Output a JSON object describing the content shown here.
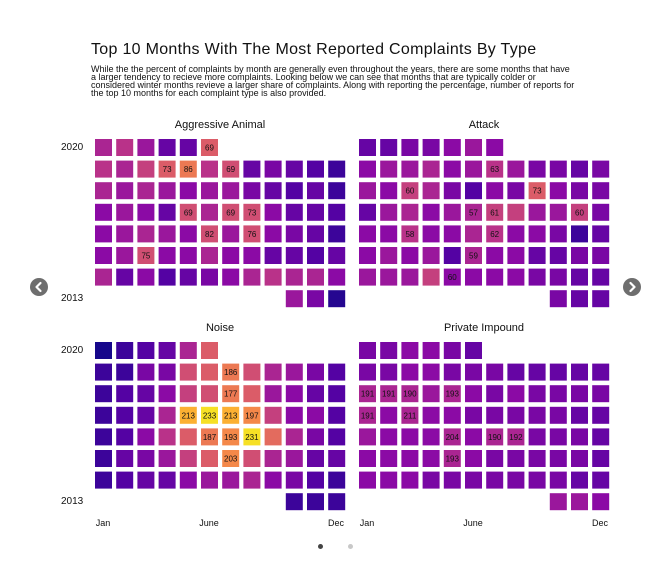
{
  "title": "Top 10 Months With The Most Reported Complaints By Type",
  "description": "While the the percent of complaints by month are generally even throughout the years, there are some months that have a larger tendency to recieve more complaints. Looking below we can see that months that are typically colder or considered winter months revieve a larger share of complaints. Along with reporting the percentage, number of reports for the top 10 months for each complaint type is also provided.",
  "year_top": "2020",
  "year_bottom": "2013",
  "month_labels": {
    "start": "Jan",
    "mid": "June",
    "end": "Dec"
  },
  "navigation": {
    "prev_icon": "chevron-left-icon",
    "next_icon": "chevron-right-icon",
    "pages": 2,
    "active_page": 1
  },
  "colors": {
    "colormap": "plasma",
    "arrow": "#6e6e6e",
    "dot_active": "#444444",
    "dot_inactive": "#c8c8c8"
  },
  "chart_data": [
    {
      "type": "heatmap",
      "title": "Aggressive Animal",
      "x": "month (Jan–Dec)",
      "y": "year (2020 top, 2013 bottom)",
      "rows": [
        {
          "year": 2020,
          "values": [
            0.4,
            0.45,
            0.35,
            0.2,
            0.2,
            0.6,
            null,
            null,
            null,
            null,
            null,
            null
          ],
          "labels": [
            null,
            null,
            null,
            null,
            null,
            "69",
            null,
            null,
            null,
            null,
            null,
            null
          ]
        },
        {
          "year": 2019,
          "values": [
            0.45,
            0.4,
            0.5,
            0.6,
            0.7,
            0.45,
            0.55,
            0.2,
            0.25,
            0.2,
            0.15,
            0.1
          ],
          "labels": [
            null,
            null,
            null,
            "73",
            "86",
            null,
            "69",
            null,
            null,
            null,
            null,
            null
          ]
        },
        {
          "year": 2018,
          "values": [
            0.4,
            0.35,
            0.4,
            0.35,
            0.3,
            0.35,
            0.35,
            0.25,
            0.2,
            0.15,
            0.2,
            0.1
          ],
          "labels": [
            null,
            null,
            null,
            null,
            null,
            null,
            null,
            null,
            null,
            null,
            null,
            null
          ]
        },
        {
          "year": 2017,
          "values": [
            0.3,
            0.35,
            0.3,
            0.2,
            0.55,
            0.4,
            0.55,
            0.55,
            0.3,
            0.2,
            0.2,
            0.15
          ],
          "labels": [
            null,
            null,
            null,
            null,
            "69",
            null,
            "69",
            "73",
            null,
            null,
            null,
            null
          ]
        },
        {
          "year": 2016,
          "values": [
            0.3,
            0.35,
            0.4,
            0.35,
            0.3,
            0.55,
            0.35,
            0.55,
            0.3,
            0.25,
            0.2,
            0.1
          ],
          "labels": [
            null,
            null,
            null,
            null,
            null,
            "82",
            null,
            "76",
            null,
            null,
            null,
            null
          ]
        },
        {
          "year": 2015,
          "values": [
            0.3,
            0.35,
            0.55,
            0.3,
            0.3,
            0.4,
            0.3,
            0.3,
            0.2,
            0.2,
            0.15,
            0.2
          ],
          "labels": [
            null,
            null,
            "75",
            null,
            null,
            null,
            null,
            null,
            null,
            null,
            null,
            null
          ]
        },
        {
          "year": 2014,
          "values": [
            0.4,
            0.2,
            0.3,
            0.15,
            0.2,
            0.25,
            0.3,
            0.4,
            0.45,
            0.4,
            0.4,
            0.3
          ],
          "labels": [
            null,
            null,
            null,
            null,
            null,
            null,
            null,
            null,
            null,
            null,
            null,
            null
          ]
        },
        {
          "year": 2013,
          "values": [
            null,
            null,
            null,
            null,
            null,
            null,
            null,
            null,
            null,
            0.35,
            0.25,
            0.05
          ],
          "labels": [
            null,
            null,
            null,
            null,
            null,
            null,
            null,
            null,
            null,
            null,
            null,
            null
          ]
        }
      ]
    },
    {
      "type": "heatmap",
      "title": "Attack",
      "x": "month (Jan–Dec)",
      "y": "year (2020 top, 2013 bottom)",
      "rows": [
        {
          "year": 2020,
          "values": [
            0.2,
            0.2,
            0.25,
            0.25,
            0.3,
            0.35,
            0.3,
            null,
            null,
            null,
            null,
            null
          ],
          "labels": [
            null,
            null,
            null,
            null,
            null,
            null,
            null,
            null,
            null,
            null,
            null,
            null
          ]
        },
        {
          "year": 2019,
          "values": [
            0.3,
            0.35,
            0.35,
            0.4,
            0.3,
            0.35,
            0.45,
            0.35,
            0.25,
            0.25,
            0.2,
            0.25
          ],
          "labels": [
            null,
            null,
            null,
            null,
            null,
            null,
            "63",
            null,
            null,
            null,
            null,
            null
          ]
        },
        {
          "year": 2018,
          "values": [
            0.35,
            0.3,
            0.5,
            0.4,
            0.25,
            0.15,
            0.3,
            0.25,
            0.6,
            0.3,
            0.25,
            0.25
          ],
          "labels": [
            null,
            null,
            "60",
            null,
            null,
            null,
            null,
            null,
            "73",
            null,
            null,
            null
          ]
        },
        {
          "year": 2017,
          "values": [
            0.2,
            0.35,
            0.4,
            0.3,
            0.35,
            0.4,
            0.5,
            0.5,
            0.35,
            0.35,
            0.5,
            0.25
          ],
          "labels": [
            null,
            null,
            null,
            null,
            null,
            "57",
            "61",
            null,
            null,
            null,
            "60",
            null
          ]
        },
        {
          "year": 2016,
          "values": [
            0.3,
            0.3,
            0.45,
            0.3,
            0.3,
            0.4,
            0.45,
            0.3,
            0.3,
            0.25,
            0.1,
            0.2
          ],
          "labels": [
            null,
            null,
            "58",
            null,
            null,
            null,
            "62",
            null,
            null,
            null,
            null,
            null
          ]
        },
        {
          "year": 2015,
          "values": [
            0.3,
            0.35,
            0.3,
            0.35,
            0.15,
            0.4,
            0.3,
            0.3,
            0.2,
            0.2,
            0.25,
            0.25
          ],
          "labels": [
            null,
            null,
            null,
            null,
            null,
            "59",
            null,
            null,
            null,
            null,
            null,
            null
          ]
        },
        {
          "year": 2014,
          "values": [
            0.35,
            0.35,
            0.35,
            0.5,
            0.3,
            0.3,
            0.3,
            0.3,
            0.25,
            0.25,
            0.2,
            0.2
          ],
          "labels": [
            null,
            null,
            null,
            null,
            "60",
            null,
            null,
            null,
            null,
            null,
            null,
            null
          ]
        },
        {
          "year": 2013,
          "values": [
            null,
            null,
            null,
            null,
            null,
            null,
            null,
            null,
            null,
            0.25,
            0.2,
            0.2
          ],
          "labels": [
            null,
            null,
            null,
            null,
            null,
            null,
            null,
            null,
            null,
            null,
            null,
            null
          ]
        }
      ]
    },
    {
      "type": "heatmap",
      "title": "Noise",
      "x": "month (Jan–Dec)",
      "y": "year (2020 top, 2013 bottom)",
      "rows": [
        {
          "year": 2020,
          "values": [
            0.02,
            0.1,
            0.15,
            0.2,
            0.4,
            0.6,
            null,
            null,
            null,
            null,
            null,
            null
          ],
          "labels": [
            null,
            null,
            null,
            null,
            null,
            null,
            null,
            null,
            null,
            null,
            null,
            null
          ]
        },
        {
          "year": 2019,
          "values": [
            0.1,
            0.1,
            0.25,
            0.25,
            0.55,
            0.6,
            0.7,
            0.55,
            0.4,
            0.35,
            0.25,
            0.15
          ],
          "labels": [
            null,
            null,
            null,
            null,
            null,
            null,
            "186",
            null,
            null,
            null,
            null,
            null
          ]
        },
        {
          "year": 2018,
          "values": [
            0.1,
            0.15,
            0.2,
            0.3,
            0.5,
            0.55,
            0.7,
            0.6,
            0.35,
            0.3,
            0.2,
            0.15
          ],
          "labels": [
            null,
            null,
            null,
            null,
            null,
            null,
            "177",
            null,
            null,
            null,
            null,
            null
          ]
        },
        {
          "year": 2017,
          "values": [
            0.1,
            0.15,
            0.2,
            0.4,
            0.85,
            0.95,
            0.85,
            0.75,
            0.5,
            0.3,
            0.3,
            0.15
          ],
          "labels": [
            null,
            null,
            null,
            null,
            "213",
            "233",
            "213",
            "197",
            null,
            null,
            null,
            null
          ]
        },
        {
          "year": 2016,
          "values": [
            0.1,
            0.15,
            0.3,
            0.45,
            0.6,
            0.7,
            0.75,
            0.95,
            0.65,
            0.4,
            0.25,
            0.15
          ],
          "labels": [
            null,
            null,
            null,
            null,
            null,
            "187",
            "193",
            "231",
            null,
            null,
            null,
            null
          ]
        },
        {
          "year": 2015,
          "values": [
            0.1,
            0.2,
            0.25,
            0.35,
            0.5,
            0.6,
            0.75,
            0.55,
            0.4,
            0.35,
            0.2,
            0.2
          ],
          "labels": [
            null,
            null,
            null,
            null,
            null,
            null,
            "203",
            null,
            null,
            null,
            null,
            null
          ]
        },
        {
          "year": 2014,
          "values": [
            0.1,
            0.15,
            0.2,
            0.2,
            0.3,
            0.35,
            0.35,
            0.4,
            0.3,
            0.25,
            0.15,
            0.1
          ],
          "labels": [
            null,
            null,
            null,
            null,
            null,
            null,
            null,
            null,
            null,
            null,
            null,
            null
          ]
        },
        {
          "year": 2013,
          "values": [
            null,
            null,
            null,
            null,
            null,
            null,
            null,
            null,
            null,
            0.1,
            0.1,
            0.1
          ],
          "labels": [
            null,
            null,
            null,
            null,
            null,
            null,
            null,
            null,
            null,
            null,
            null,
            null
          ]
        }
      ]
    },
    {
      "type": "heatmap",
      "title": "Private Impound",
      "x": "month (Jan–Dec)",
      "y": "year (2020 top, 2013 bottom)",
      "rows": [
        {
          "year": 2020,
          "values": [
            0.25,
            0.25,
            0.3,
            0.3,
            0.25,
            0.2,
            null,
            null,
            null,
            null,
            null,
            null
          ],
          "labels": [
            null,
            null,
            null,
            null,
            null,
            null,
            null,
            null,
            null,
            null,
            null,
            null
          ]
        },
        {
          "year": 2019,
          "values": [
            0.25,
            0.25,
            0.3,
            0.3,
            0.25,
            0.25,
            0.25,
            0.2,
            0.2,
            0.2,
            0.2,
            0.2
          ],
          "labels": [
            null,
            null,
            null,
            null,
            null,
            null,
            null,
            null,
            null,
            null,
            null,
            null
          ]
        },
        {
          "year": 2018,
          "values": [
            0.4,
            0.4,
            0.4,
            0.35,
            0.4,
            0.3,
            0.25,
            0.3,
            0.25,
            0.25,
            0.25,
            0.25
          ],
          "labels": [
            "191",
            "191",
            "190",
            null,
            "193",
            null,
            null,
            null,
            null,
            null,
            null,
            null
          ]
        },
        {
          "year": 2017,
          "values": [
            0.4,
            0.3,
            0.4,
            0.3,
            0.3,
            0.25,
            0.25,
            0.25,
            0.25,
            0.25,
            0.2,
            0.2
          ],
          "labels": [
            "191",
            null,
            "211",
            null,
            null,
            null,
            null,
            null,
            null,
            null,
            null,
            null
          ]
        },
        {
          "year": 2016,
          "values": [
            0.35,
            0.3,
            0.3,
            0.3,
            0.4,
            0.3,
            0.4,
            0.4,
            0.25,
            0.25,
            0.25,
            0.2
          ],
          "labels": [
            null,
            null,
            null,
            null,
            "204",
            null,
            "190",
            "192",
            null,
            null,
            null,
            null
          ]
        },
        {
          "year": 2015,
          "values": [
            0.3,
            0.3,
            0.3,
            0.3,
            0.4,
            0.3,
            0.25,
            0.25,
            0.25,
            0.25,
            0.25,
            0.2
          ],
          "labels": [
            null,
            null,
            null,
            null,
            "193",
            null,
            null,
            null,
            null,
            null,
            null,
            null
          ]
        },
        {
          "year": 2014,
          "values": [
            0.3,
            0.3,
            0.3,
            0.25,
            0.25,
            0.25,
            0.25,
            0.25,
            0.25,
            0.25,
            0.2,
            0.2
          ],
          "labels": [
            null,
            null,
            null,
            null,
            null,
            null,
            null,
            null,
            null,
            null,
            null,
            null
          ]
        },
        {
          "year": 2013,
          "values": [
            null,
            null,
            null,
            null,
            null,
            null,
            null,
            null,
            null,
            0.35,
            0.35,
            0.3
          ],
          "labels": [
            null,
            null,
            null,
            null,
            null,
            null,
            null,
            null,
            null,
            null,
            null,
            null
          ]
        }
      ]
    }
  ]
}
